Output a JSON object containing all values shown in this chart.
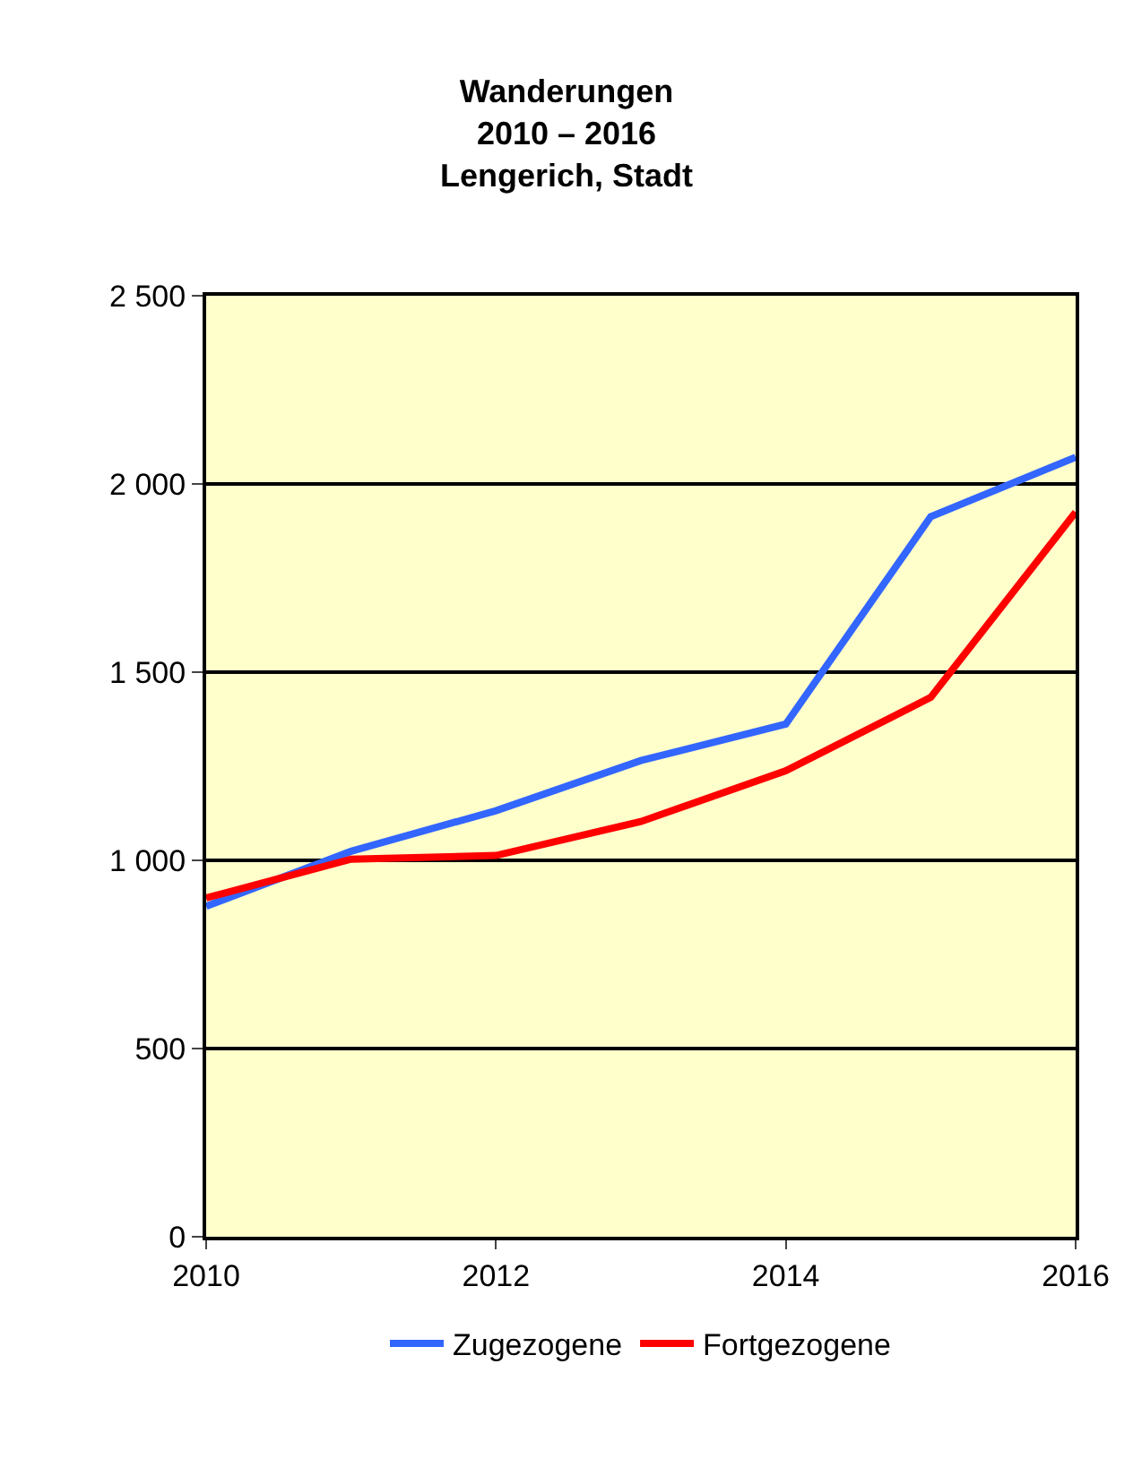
{
  "chart_data": {
    "type": "line",
    "title": "Wanderungen\n2010 – 2016\nLengerich, Stadt",
    "x": [
      2010,
      2011,
      2012,
      2013,
      2014,
      2015,
      2016
    ],
    "series": [
      {
        "name": "Zugezogene",
        "color": "#3366ff",
        "values": [
          878,
          1024,
          1132,
          1265,
          1362,
          1913,
          2071
        ]
      },
      {
        "name": "Fortgezogene",
        "color": "#ff0000",
        "values": [
          900,
          1003,
          1013,
          1103,
          1238,
          1433,
          1925
        ]
      }
    ],
    "xlim": [
      2010,
      2016
    ],
    "xticks": [
      2010,
      2012,
      2014,
      2016
    ],
    "ylim": [
      0,
      2500
    ],
    "yticks": [
      {
        "value": 0,
        "label": "0"
      },
      {
        "value": 500,
        "label": "500"
      },
      {
        "value": 1000,
        "label": "1 000"
      },
      {
        "value": 1500,
        "label": "1 500"
      },
      {
        "value": 2000,
        "label": "2 000"
      },
      {
        "value": 2500,
        "label": "2 500"
      }
    ],
    "grid": "y",
    "legend": "bottom",
    "marker": "none",
    "line_style": "solid"
  }
}
